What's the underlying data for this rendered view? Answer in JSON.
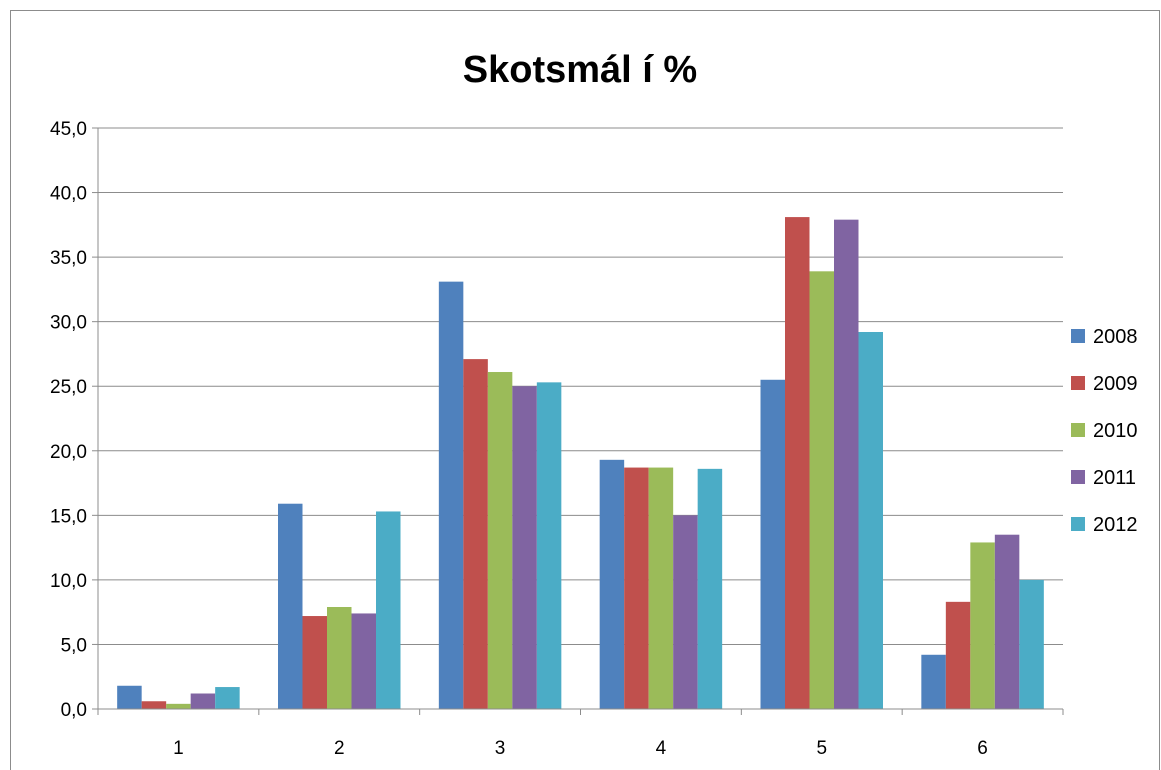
{
  "chart_data": {
    "type": "bar",
    "title": "Skotsmál  í %",
    "xlabel": "",
    "ylabel": "",
    "categories": [
      "1",
      "2",
      "3",
      "4",
      "5",
      "6"
    ],
    "ylim": [
      0,
      45
    ],
    "yticks": [
      "0,0",
      "5,0",
      "10,0",
      "15,0",
      "20,0",
      "25,0",
      "30,0",
      "35,0",
      "40,0",
      "45,0"
    ],
    "grid": true,
    "legend_position": "right",
    "series": [
      {
        "name": "2008",
        "color": "#4F81BD",
        "values": [
          1.8,
          15.9,
          33.1,
          19.3,
          25.5,
          4.2
        ]
      },
      {
        "name": "2009",
        "color": "#C0504D",
        "values": [
          0.6,
          7.2,
          27.1,
          18.7,
          38.1,
          8.3
        ]
      },
      {
        "name": "2010",
        "color": "#9BBB59",
        "values": [
          0.4,
          7.9,
          26.1,
          18.7,
          33.9,
          12.9
        ]
      },
      {
        "name": "2011",
        "color": "#8064A2",
        "values": [
          1.2,
          7.4,
          25.0,
          15.0,
          37.9,
          13.5
        ]
      },
      {
        "name": "2012",
        "color": "#4BACC6",
        "values": [
          1.7,
          15.3,
          25.3,
          18.6,
          29.2,
          10.0
        ]
      }
    ]
  }
}
